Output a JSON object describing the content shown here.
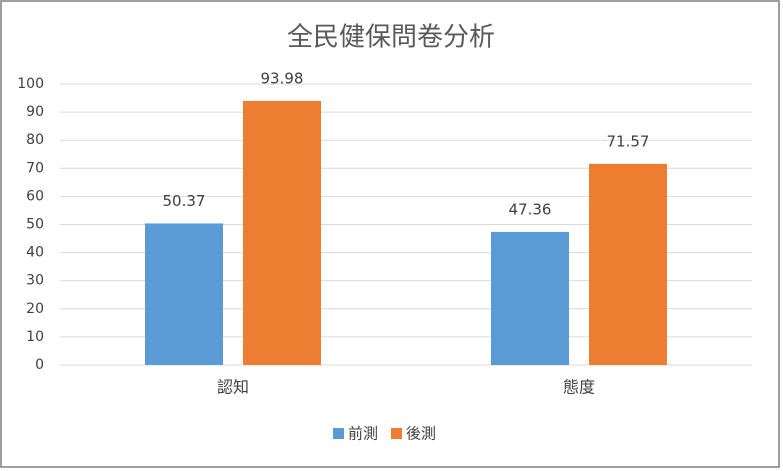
{
  "chart_data": {
    "type": "bar",
    "title": "全民健保問卷分析",
    "categories": [
      "認知",
      "態度"
    ],
    "series": [
      {
        "name": "前測",
        "color": "#5b9bd5",
        "values": [
          50.37,
          47.36
        ]
      },
      {
        "name": "後測",
        "color": "#ed7d31",
        "values": [
          93.98,
          71.57
        ]
      }
    ],
    "ylim": [
      0,
      100
    ],
    "yticks": [
      0,
      10,
      20,
      30,
      40,
      50,
      60,
      70,
      80,
      90,
      100
    ],
    "grid": true,
    "legend": "bottom"
  }
}
